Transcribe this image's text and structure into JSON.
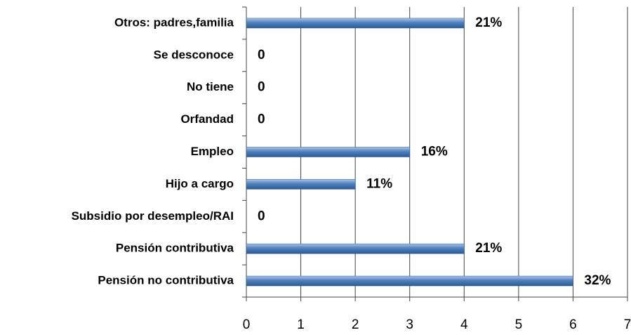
{
  "chart_data": {
    "type": "bar",
    "orientation": "horizontal",
    "categories": [
      "Otros: padres,familia",
      "Se desconoce",
      "No tiene",
      "Orfandad",
      "Empleo",
      "Hijo a cargo",
      "Subsidio por desempleo/RAI",
      "Pensión contributiva",
      "Pensión no contributiva"
    ],
    "values": [
      4,
      0,
      0,
      0,
      3,
      2,
      0,
      4,
      6
    ],
    "value_labels": [
      "21%",
      "0",
      "0",
      "0",
      "16%",
      "11%",
      "0",
      "21%",
      "32%"
    ],
    "color": "#4f81bd",
    "xlim": [
      0,
      7
    ],
    "xticks": [
      0,
      1,
      2,
      3,
      4,
      5,
      6,
      7
    ],
    "grid": true
  }
}
